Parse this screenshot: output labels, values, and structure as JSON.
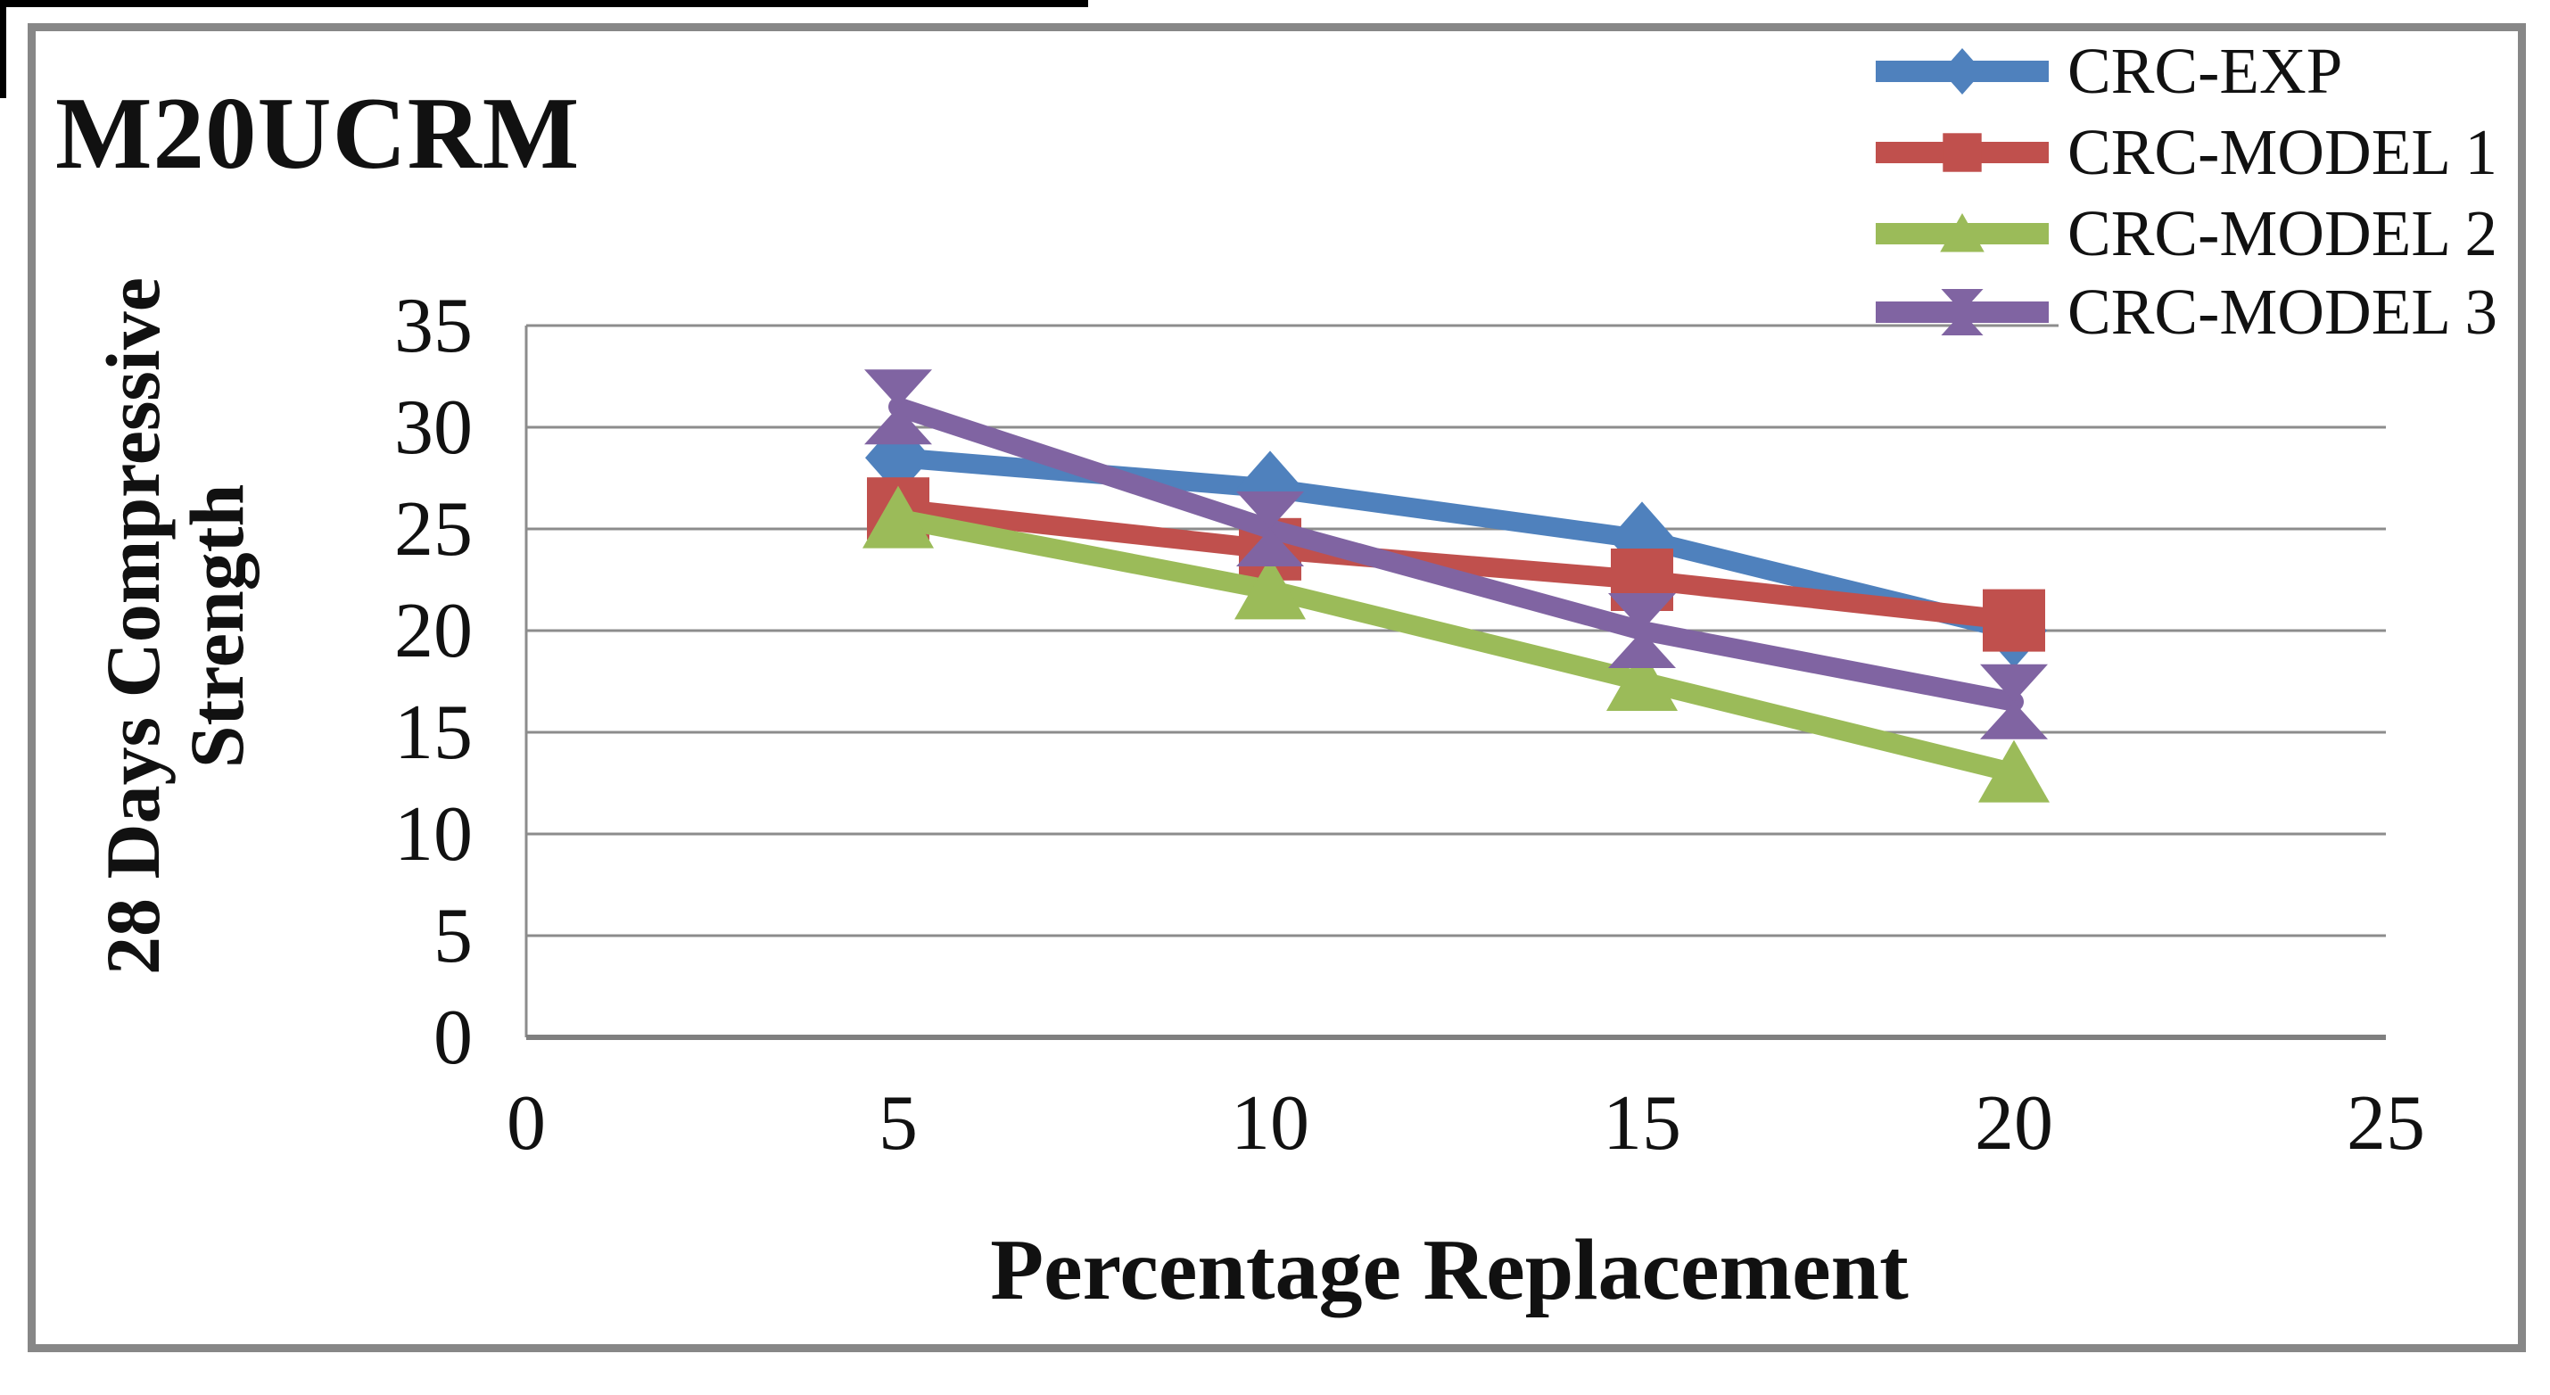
{
  "figure": {
    "title": "M20UCRM"
  },
  "chart_data": {
    "type": "line",
    "title": "M20UCRM",
    "xlabel": "Percentage Replacement",
    "ylabel": "28 Days Compressive Strength",
    "ylabel_lines": [
      "28 Days Compressive",
      "Strength"
    ],
    "x": [
      5,
      10,
      15,
      20
    ],
    "series": [
      {
        "name": "CRC-EXP",
        "color": "#4F81BD",
        "marker": "diamond",
        "values": [
          28.5,
          27,
          24.5,
          20
        ]
      },
      {
        "name": "CRC-MODEL 1",
        "color": "#C0504D",
        "marker": "square",
        "values": [
          26,
          24,
          22.5,
          20.5
        ]
      },
      {
        "name": "CRC-MODEL 2",
        "color": "#9BBB59",
        "marker": "triangle",
        "values": [
          25.5,
          22,
          17.5,
          13
        ]
      },
      {
        "name": "CRC-MODEL 3",
        "color": "#8064A2",
        "marker": "hourglass",
        "values": [
          31,
          25,
          20,
          16.5
        ]
      }
    ],
    "xlim": [
      0,
      25
    ],
    "ylim": [
      0,
      35
    ],
    "xticks": [
      0,
      5,
      10,
      15,
      20,
      25
    ],
    "yticks": [
      35,
      30,
      25,
      20,
      15,
      10,
      5,
      0
    ],
    "grid": true,
    "legend_position": "top-right",
    "gridline_color": "#8C8C8C",
    "axis_line_color": "#7F7F7F",
    "text_color": "#111111"
  }
}
